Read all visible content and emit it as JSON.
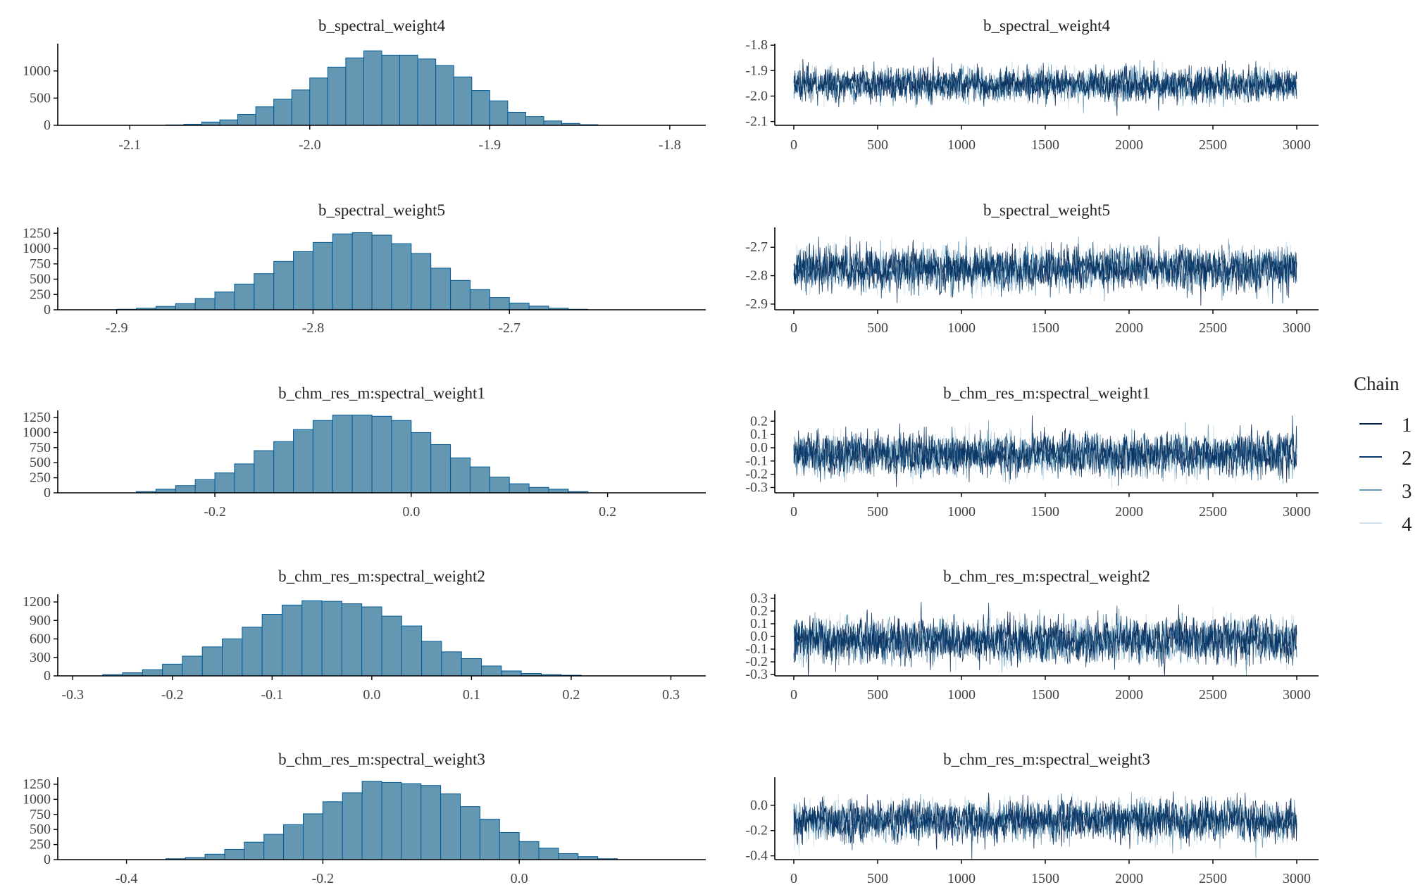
{
  "chart_data": [
    {
      "type": "bar",
      "panel": "histogram",
      "title": "b_spectral_weight4",
      "xlim": [
        -2.14,
        -1.78
      ],
      "ylim": [
        0,
        1450
      ],
      "x_ticks": [
        "-2.1",
        "-2.0",
        "-1.9",
        "-1.8"
      ],
      "y_ticks": [
        "0",
        "500",
        "1000"
      ],
      "bins": [
        {
          "x": -2.075,
          "y": 8
        },
        {
          "x": -2.065,
          "y": 20
        },
        {
          "x": -2.055,
          "y": 60
        },
        {
          "x": -2.045,
          "y": 100
        },
        {
          "x": -2.035,
          "y": 200
        },
        {
          "x": -2.025,
          "y": 340
        },
        {
          "x": -2.015,
          "y": 480
        },
        {
          "x": -2.005,
          "y": 650
        },
        {
          "x": -1.995,
          "y": 870
        },
        {
          "x": -1.985,
          "y": 1070
        },
        {
          "x": -1.975,
          "y": 1240
        },
        {
          "x": -1.965,
          "y": 1370
        },
        {
          "x": -1.955,
          "y": 1290
        },
        {
          "x": -1.945,
          "y": 1290
        },
        {
          "x": -1.935,
          "y": 1220
        },
        {
          "x": -1.925,
          "y": 1100
        },
        {
          "x": -1.915,
          "y": 890
        },
        {
          "x": -1.905,
          "y": 640
        },
        {
          "x": -1.895,
          "y": 450
        },
        {
          "x": -1.885,
          "y": 240
        },
        {
          "x": -1.875,
          "y": 160
        },
        {
          "x": -1.865,
          "y": 80
        },
        {
          "x": -1.855,
          "y": 35
        },
        {
          "x": -1.845,
          "y": 12
        }
      ]
    },
    {
      "type": "line",
      "panel": "trace",
      "title": "b_spectral_weight4",
      "xlim": [
        0,
        3000
      ],
      "ylim": [
        -2.115,
        -1.805
      ],
      "x_ticks": [
        "0",
        "500",
        "1000",
        "1500",
        "2000",
        "2500",
        "3000"
      ],
      "y_ticks": [
        {
          "v": -1.8,
          "label": "-1.8"
        },
        {
          "v": -1.9,
          "label": "-1.9"
        },
        {
          "v": -2.0,
          "label": "-2.0"
        },
        {
          "v": -2.1,
          "label": "-2.1"
        }
      ],
      "mean": -1.955,
      "sd": 0.03,
      "series": [
        {
          "name": "1"
        },
        {
          "name": "2"
        },
        {
          "name": "3"
        },
        {
          "name": "4"
        }
      ]
    },
    {
      "type": "bar",
      "panel": "histogram",
      "title": "b_spectral_weight5",
      "xlim": [
        -2.93,
        -2.6
      ],
      "ylim": [
        0,
        1300
      ],
      "x_ticks": [
        "-2.9",
        "-2.8",
        "-2.7"
      ],
      "y_ticks": [
        "0",
        "250",
        "500",
        "750",
        "1000",
        "1250"
      ],
      "bins": [
        {
          "x": -2.895,
          "y": 8
        },
        {
          "x": -2.885,
          "y": 25
        },
        {
          "x": -2.875,
          "y": 55
        },
        {
          "x": -2.865,
          "y": 100
        },
        {
          "x": -2.855,
          "y": 185
        },
        {
          "x": -2.845,
          "y": 290
        },
        {
          "x": -2.835,
          "y": 420
        },
        {
          "x": -2.825,
          "y": 590
        },
        {
          "x": -2.815,
          "y": 790
        },
        {
          "x": -2.805,
          "y": 950
        },
        {
          "x": -2.795,
          "y": 1100
        },
        {
          "x": -2.785,
          "y": 1240
        },
        {
          "x": -2.775,
          "y": 1260
        },
        {
          "x": -2.765,
          "y": 1220
        },
        {
          "x": -2.755,
          "y": 1080
        },
        {
          "x": -2.745,
          "y": 920
        },
        {
          "x": -2.735,
          "y": 680
        },
        {
          "x": -2.725,
          "y": 480
        },
        {
          "x": -2.715,
          "y": 330
        },
        {
          "x": -2.705,
          "y": 200
        },
        {
          "x": -2.695,
          "y": 110
        },
        {
          "x": -2.685,
          "y": 60
        },
        {
          "x": -2.675,
          "y": 25
        },
        {
          "x": -2.665,
          "y": 8
        }
      ]
    },
    {
      "type": "line",
      "panel": "trace",
      "title": "b_spectral_weight5",
      "xlim": [
        0,
        3000
      ],
      "ylim": [
        -2.92,
        -2.64
      ],
      "x_ticks": [
        "0",
        "500",
        "1000",
        "1500",
        "2000",
        "2500",
        "3000"
      ],
      "y_ticks": [
        {
          "v": -2.7,
          "label": "-2.7"
        },
        {
          "v": -2.8,
          "label": "-2.8"
        },
        {
          "v": -2.9,
          "label": "-2.9"
        }
      ],
      "mean": -2.775,
      "sd": 0.035,
      "series": [
        {
          "name": "1"
        },
        {
          "name": "2"
        },
        {
          "name": "3"
        },
        {
          "name": "4"
        }
      ]
    },
    {
      "type": "bar",
      "panel": "histogram",
      "title": "b_chm_res_m:spectral_weight1",
      "xlim": [
        -0.36,
        0.3
      ],
      "ylim": [
        0,
        1320
      ],
      "x_ticks": [
        "-0.2",
        "0.0",
        "0.2"
      ],
      "y_ticks": [
        "0",
        "250",
        "500",
        "750",
        "1000",
        "1250"
      ],
      "bins": [
        {
          "x": -0.27,
          "y": 20
        },
        {
          "x": -0.25,
          "y": 60
        },
        {
          "x": -0.23,
          "y": 120
        },
        {
          "x": -0.21,
          "y": 220
        },
        {
          "x": -0.19,
          "y": 330
        },
        {
          "x": -0.17,
          "y": 480
        },
        {
          "x": -0.15,
          "y": 700
        },
        {
          "x": -0.13,
          "y": 850
        },
        {
          "x": -0.11,
          "y": 1050
        },
        {
          "x": -0.09,
          "y": 1200
        },
        {
          "x": -0.07,
          "y": 1290
        },
        {
          "x": -0.05,
          "y": 1290
        },
        {
          "x": -0.03,
          "y": 1270
        },
        {
          "x": -0.01,
          "y": 1200
        },
        {
          "x": 0.01,
          "y": 1000
        },
        {
          "x": 0.03,
          "y": 800
        },
        {
          "x": 0.05,
          "y": 580
        },
        {
          "x": 0.07,
          "y": 430
        },
        {
          "x": 0.09,
          "y": 260
        },
        {
          "x": 0.11,
          "y": 150
        },
        {
          "x": 0.13,
          "y": 90
        },
        {
          "x": 0.15,
          "y": 60
        },
        {
          "x": 0.17,
          "y": 20
        }
      ]
    },
    {
      "type": "line",
      "panel": "trace",
      "title": "b_chm_res_m:spectral_weight1",
      "xlim": [
        0,
        3000
      ],
      "ylim": [
        -0.34,
        0.26
      ],
      "x_ticks": [
        "0",
        "500",
        "1000",
        "1500",
        "2000",
        "2500",
        "3000"
      ],
      "y_ticks": [
        {
          "v": 0.2,
          "label": "0.2"
        },
        {
          "v": 0.1,
          "label": "0.1"
        },
        {
          "v": 0.0,
          "label": "0.0"
        },
        {
          "v": -0.1,
          "label": "-0.1"
        },
        {
          "v": -0.2,
          "label": "-0.2"
        },
        {
          "v": -0.3,
          "label": "-0.3"
        }
      ],
      "mean": -0.05,
      "sd": 0.075,
      "series": [
        {
          "name": "1"
        },
        {
          "name": "2"
        },
        {
          "name": "3"
        },
        {
          "name": "4"
        }
      ]
    },
    {
      "type": "bar",
      "panel": "histogram",
      "title": "b_chm_res_m:spectral_weight2",
      "xlim": [
        -0.315,
        0.335
      ],
      "ylim": [
        0,
        1280
      ],
      "x_ticks": [
        "-0.3",
        "-0.2",
        "-0.1",
        "0.0",
        "0.1",
        "0.2",
        "0.3"
      ],
      "y_ticks": [
        "0",
        "300",
        "600",
        "900",
        "1200"
      ],
      "bins": [
        {
          "x": -0.26,
          "y": 20
        },
        {
          "x": -0.24,
          "y": 50
        },
        {
          "x": -0.22,
          "y": 100
        },
        {
          "x": -0.2,
          "y": 190
        },
        {
          "x": -0.18,
          "y": 320
        },
        {
          "x": -0.16,
          "y": 470
        },
        {
          "x": -0.14,
          "y": 600
        },
        {
          "x": -0.12,
          "y": 790
        },
        {
          "x": -0.1,
          "y": 1000
        },
        {
          "x": -0.08,
          "y": 1150
        },
        {
          "x": -0.06,
          "y": 1220
        },
        {
          "x": -0.04,
          "y": 1210
        },
        {
          "x": -0.02,
          "y": 1170
        },
        {
          "x": 0.0,
          "y": 1120
        },
        {
          "x": 0.02,
          "y": 970
        },
        {
          "x": 0.04,
          "y": 810
        },
        {
          "x": 0.06,
          "y": 560
        },
        {
          "x": 0.08,
          "y": 390
        },
        {
          "x": 0.1,
          "y": 280
        },
        {
          "x": 0.12,
          "y": 160
        },
        {
          "x": 0.14,
          "y": 80
        },
        {
          "x": 0.16,
          "y": 40
        },
        {
          "x": 0.18,
          "y": 20
        },
        {
          "x": 0.2,
          "y": 10
        }
      ]
    },
    {
      "type": "line",
      "panel": "trace",
      "title": "b_chm_res_m:spectral_weight2",
      "xlim": [
        0,
        3000
      ],
      "ylim": [
        -0.31,
        0.31
      ],
      "x_ticks": [
        "0",
        "500",
        "1000",
        "1500",
        "2000",
        "2500",
        "3000"
      ],
      "y_ticks": [
        {
          "v": 0.3,
          "label": "0.3"
        },
        {
          "v": 0.2,
          "label": "0.2"
        },
        {
          "v": 0.1,
          "label": "0.1"
        },
        {
          "v": 0.0,
          "label": "0.0"
        },
        {
          "v": -0.1,
          "label": "-0.1"
        },
        {
          "v": -0.2,
          "label": "-0.2"
        },
        {
          "v": -0.3,
          "label": "-0.3"
        }
      ],
      "mean": -0.03,
      "sd": 0.08,
      "series": [
        {
          "name": "1"
        },
        {
          "name": "2"
        },
        {
          "name": "3"
        },
        {
          "name": "4"
        }
      ]
    },
    {
      "type": "bar",
      "panel": "histogram",
      "title": "b_chm_res_m:spectral_weight3",
      "xlim": [
        -0.47,
        0.19
      ],
      "ylim": [
        0,
        1320
      ],
      "x_ticks": [
        "-0.4",
        "-0.2",
        "0.0"
      ],
      "y_ticks": [
        "0",
        "250",
        "500",
        "750",
        "1000",
        "1250"
      ],
      "bins": [
        {
          "x": -0.35,
          "y": 15
        },
        {
          "x": -0.33,
          "y": 35
        },
        {
          "x": -0.31,
          "y": 90
        },
        {
          "x": -0.29,
          "y": 170
        },
        {
          "x": -0.27,
          "y": 290
        },
        {
          "x": -0.25,
          "y": 420
        },
        {
          "x": -0.23,
          "y": 580
        },
        {
          "x": -0.21,
          "y": 760
        },
        {
          "x": -0.19,
          "y": 960
        },
        {
          "x": -0.17,
          "y": 1110
        },
        {
          "x": -0.15,
          "y": 1300
        },
        {
          "x": -0.13,
          "y": 1280
        },
        {
          "x": -0.11,
          "y": 1260
        },
        {
          "x": -0.09,
          "y": 1230
        },
        {
          "x": -0.07,
          "y": 1090
        },
        {
          "x": -0.05,
          "y": 880
        },
        {
          "x": -0.03,
          "y": 670
        },
        {
          "x": -0.01,
          "y": 450
        },
        {
          "x": 0.01,
          "y": 300
        },
        {
          "x": 0.03,
          "y": 190
        },
        {
          "x": 0.05,
          "y": 100
        },
        {
          "x": 0.07,
          "y": 50
        },
        {
          "x": 0.09,
          "y": 15
        }
      ]
    },
    {
      "type": "line",
      "panel": "trace",
      "title": "b_chm_res_m:spectral_weight3",
      "xlim": [
        0,
        3000
      ],
      "ylim": [
        -0.43,
        0.2
      ],
      "x_ticks": [
        "0",
        "500",
        "1000",
        "1500",
        "2000",
        "2500",
        "3000"
      ],
      "y_ticks": [
        {
          "v": 0.0,
          "label": "0.0"
        },
        {
          "v": -0.2,
          "label": "-0.2"
        },
        {
          "v": -0.4,
          "label": "-0.4"
        }
      ],
      "mean": -0.12,
      "sd": 0.075,
      "series": [
        {
          "name": "1"
        },
        {
          "name": "2"
        },
        {
          "name": "3"
        },
        {
          "name": "4"
        }
      ]
    }
  ],
  "legend": {
    "title": "Chain",
    "items": [
      {
        "label": "1",
        "color": "#011f4b"
      },
      {
        "label": "2",
        "color": "#03396c"
      },
      {
        "label": "3",
        "color": "#6497b1"
      },
      {
        "label": "4",
        "color": "#d1e1ec"
      }
    ]
  },
  "colors": {
    "bar_fill": "#6497b1",
    "bar_outline": "#005b96",
    "axis": "#000000"
  }
}
